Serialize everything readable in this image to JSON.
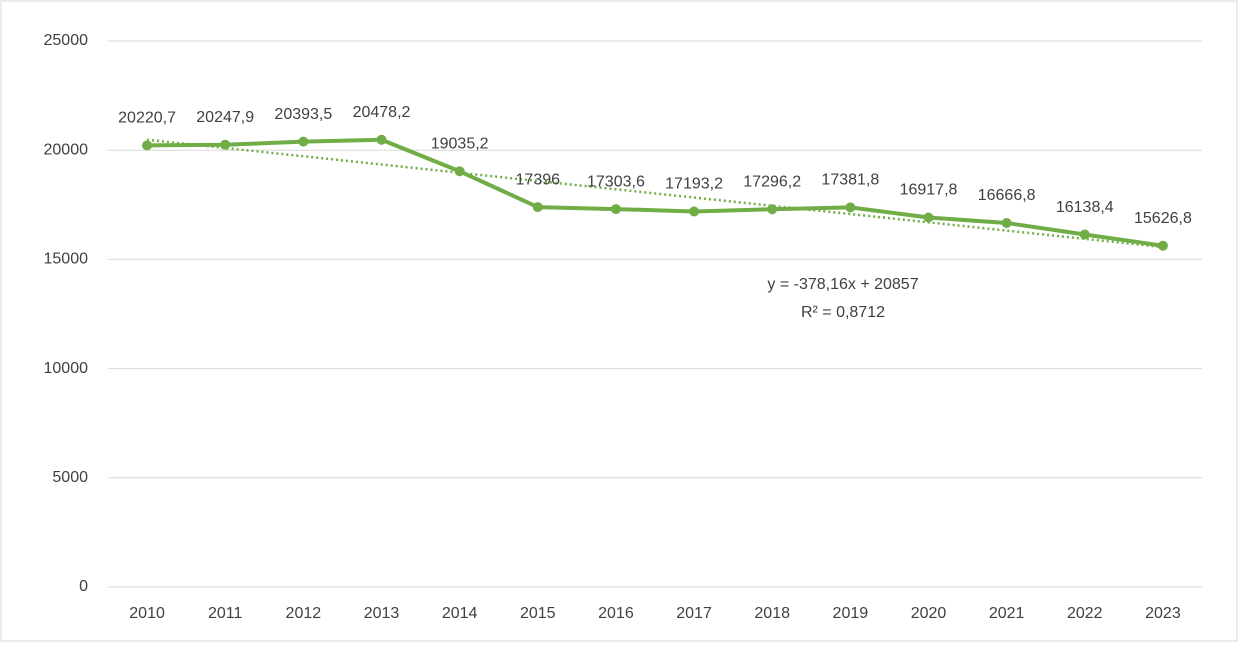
{
  "chart_data": {
    "type": "line",
    "categories": [
      "2010",
      "2011",
      "2012",
      "2013",
      "2014",
      "2015",
      "2016",
      "2017",
      "2018",
      "2019",
      "2020",
      "2021",
      "2022",
      "2023"
    ],
    "series": [
      {
        "name": "",
        "color": "#70ad47",
        "values": [
          20220.7,
          20247.9,
          20393.5,
          20478.2,
          19035.2,
          17396,
          17303.6,
          17193.2,
          17296.2,
          17381.8,
          16917.8,
          16666.8,
          16138.4,
          15626.8
        ],
        "value_labels": [
          "20220,7",
          "20247,9",
          "20393,5",
          "20478,2",
          "19035,2",
          "17396",
          "17303,6",
          "17193,2",
          "17296,2",
          "17381,8",
          "16917,8",
          "16666,8",
          "16138,4",
          "15626,8"
        ]
      }
    ],
    "trendline": {
      "slope": -378.16,
      "intercept": 20857,
      "equation": "y = -378,16x + 20857",
      "r_squared": "R² = 0,8712"
    },
    "ylim": [
      0,
      25000
    ],
    "yticks": [
      0,
      5000,
      10000,
      15000,
      20000,
      25000
    ],
    "grid": true
  }
}
